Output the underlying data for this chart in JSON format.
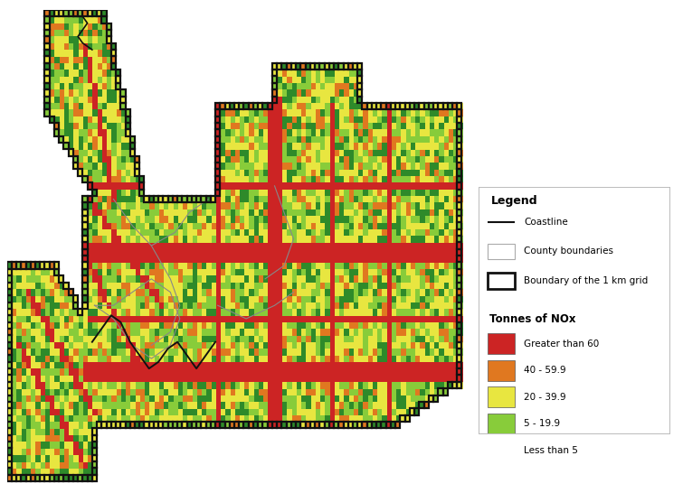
{
  "legend_title": "Legend",
  "legend_items_line": [
    {
      "label": "Coastline",
      "color": "#111111",
      "linewidth": 1.5
    },
    {
      "label": "County boundaries",
      "color": "#aaaaaa",
      "linewidth": 1.0
    },
    {
      "label": "Boundary of the 1 km grid",
      "color": "#111111",
      "linewidth": 2.5
    }
  ],
  "legend_county_box_edge": "#aaaaaa",
  "legend_grid_box_edge": "#111111",
  "legend_items_color": [
    {
      "label": "Greater than 60",
      "color": "#cc2424"
    },
    {
      "label": "40 - 59.9",
      "color": "#e07820"
    },
    {
      "label": "20 - 39.9",
      "color": "#e8e640"
    },
    {
      "label": "5 - 19.9",
      "color": "#88cc3a"
    },
    {
      "label": "Less than 5",
      "color": "#2e8a2a"
    }
  ],
  "tonnes_nox_label": "Tonnes of NOx",
  "background_color": "#ffffff",
  "colors": {
    "outside": "#ffffff",
    "lt5": "#2e8a2a",
    "5_20": "#88cc3a",
    "20_40": "#e8e640",
    "40_60": "#e07820",
    "gt60": "#cc2424"
  },
  "figsize": [
    7.55,
    5.46
  ],
  "dpi": 100
}
